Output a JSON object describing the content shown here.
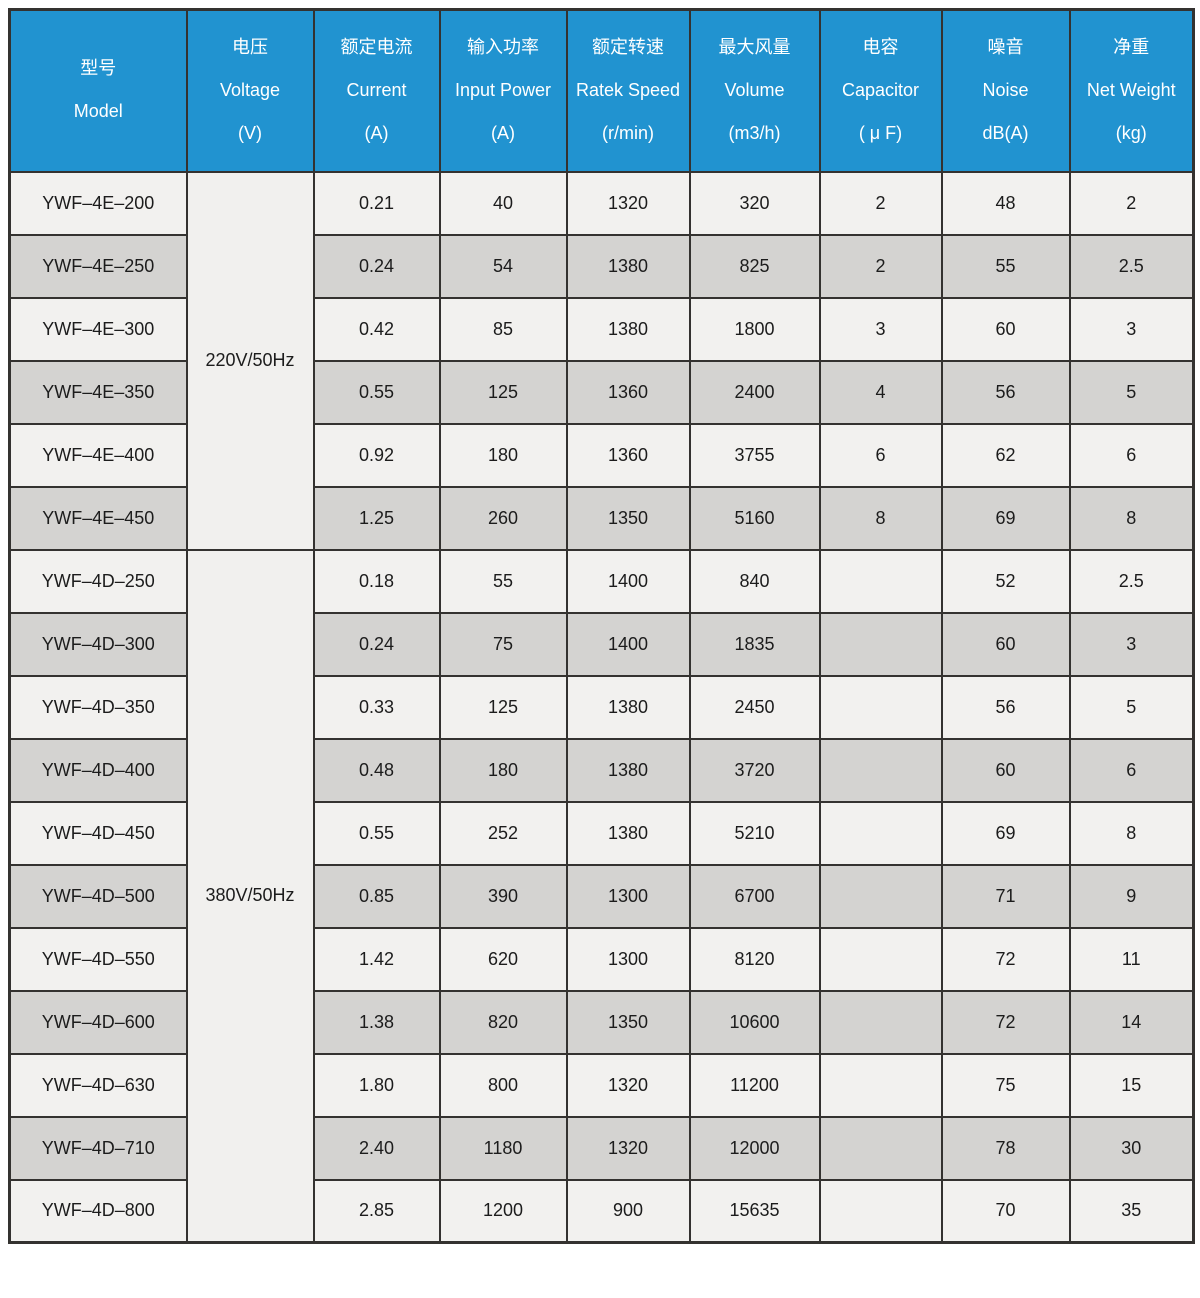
{
  "colors": {
    "header_bg": "#2193d0",
    "row_light": "#f2f1ef",
    "row_dark": "#d4d3d1",
    "border": "#343230",
    "header_text": "#ffffff",
    "cell_text": "#1c1c1c"
  },
  "chart_data": {
    "type": "table",
    "title": "",
    "columns": [
      {
        "zh": "型号",
        "en": "Model",
        "unit": ""
      },
      {
        "zh": "电压",
        "en": "Voltage",
        "unit": "(V)"
      },
      {
        "zh": "额定电流",
        "en": "Current",
        "unit": "(A)"
      },
      {
        "zh": "输入功率",
        "en": "Input Power",
        "unit": "(A)"
      },
      {
        "zh": "额定转速",
        "en": "Ratek Speed",
        "unit": "(r/min)"
      },
      {
        "zh": "最大风量",
        "en": "Volume",
        "unit": "(m3/h)"
      },
      {
        "zh": "电容",
        "en": "Capacitor",
        "unit": "( μ F)"
      },
      {
        "zh": "噪音",
        "en": "Noise",
        "unit": "dB(A)"
      },
      {
        "zh": "净重",
        "en": "Net Weight",
        "unit": "(kg)"
      }
    ],
    "sections": [
      {
        "voltage": "220V/50Hz",
        "rows": [
          [
            "YWF–4E–200",
            "0.21",
            "40",
            "1320",
            "320",
            "2",
            "48",
            "2"
          ],
          [
            "YWF–4E–250",
            "0.24",
            "54",
            "1380",
            "825",
            "2",
            "55",
            "2.5"
          ],
          [
            "YWF–4E–300",
            "0.42",
            "85",
            "1380",
            "1800",
            "3",
            "60",
            "3"
          ],
          [
            "YWF–4E–350",
            "0.55",
            "125",
            "1360",
            "2400",
            "4",
            "56",
            "5"
          ],
          [
            "YWF–4E–400",
            "0.92",
            "180",
            "1360",
            "3755",
            "6",
            "62",
            "6"
          ],
          [
            "YWF–4E–450",
            "1.25",
            "260",
            "1350",
            "5160",
            "8",
            "69",
            "8"
          ]
        ]
      },
      {
        "voltage": "380V/50Hz",
        "rows": [
          [
            "YWF–4D–250",
            "0.18",
            "55",
            "1400",
            "840",
            "",
            "52",
            "2.5"
          ],
          [
            "YWF–4D–300",
            "0.24",
            "75",
            "1400",
            "1835",
            "",
            "60",
            "3"
          ],
          [
            "YWF–4D–350",
            "0.33",
            "125",
            "1380",
            "2450",
            "",
            "56",
            "5"
          ],
          [
            "YWF–4D–400",
            "0.48",
            "180",
            "1380",
            "3720",
            "",
            "60",
            "6"
          ],
          [
            "YWF–4D–450",
            "0.55",
            "252",
            "1380",
            "5210",
            "",
            "69",
            "8"
          ],
          [
            "YWF–4D–500",
            "0.85",
            "390",
            "1300",
            "6700",
            "",
            "71",
            "9"
          ],
          [
            "YWF–4D–550",
            "1.42",
            "620",
            "1300",
            "8120",
            "",
            "72",
            "11"
          ],
          [
            "YWF–4D–600",
            "1.38",
            "820",
            "1350",
            "10600",
            "",
            "72",
            "14"
          ],
          [
            "YWF–4D–630",
            "1.80",
            "800",
            "1320",
            "11200",
            "",
            "75",
            "15"
          ],
          [
            "YWF–4D–710",
            "2.40",
            "1180",
            "1320",
            "12000",
            "",
            "78",
            "30"
          ],
          [
            "YWF–4D–800",
            "2.85",
            "1200",
            "900",
            "15635",
            "",
            "70",
            "35"
          ]
        ]
      }
    ]
  }
}
